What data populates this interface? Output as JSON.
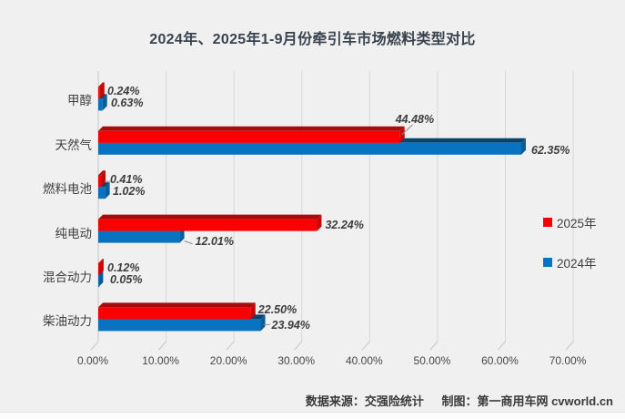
{
  "chart_data": {
    "type": "bar",
    "orientation": "horizontal",
    "style": "3d",
    "title": "2024年、2025年1-9月份牵引车市场燃料类型对比",
    "categories": [
      "甲醇",
      "天然气",
      "燃料电池",
      "纯电动",
      "混合动力",
      "柴油动力"
    ],
    "series": [
      {
        "name": "2025年",
        "color": "#fb0000",
        "values": [
          0.24,
          44.48,
          0.41,
          32.24,
          0.12,
          22.5
        ],
        "labels": [
          "0.24%",
          "44.48%",
          "0.41%",
          "32.24%",
          "0.12%",
          "22.50%"
        ]
      },
      {
        "name": "2024年",
        "color": "#0873c0",
        "values": [
          0.63,
          62.35,
          1.02,
          12.01,
          0.05,
          23.94
        ],
        "labels": [
          "0.63%",
          "62.35%",
          "1.02%",
          "12.01%",
          "0.05%",
          "23.94%"
        ]
      }
    ],
    "x_ticks": [
      "0.00%",
      "10.00%",
      "20.00%",
      "30.00%",
      "40.00%",
      "50.00%",
      "60.00%",
      "70.00%"
    ],
    "xlim": [
      0,
      70
    ],
    "grid": true,
    "legend_position": "center-right"
  },
  "footer": {
    "source": "数据来源：交强险统计",
    "credit": "制图：第一商用车网 cvworld.cn"
  }
}
